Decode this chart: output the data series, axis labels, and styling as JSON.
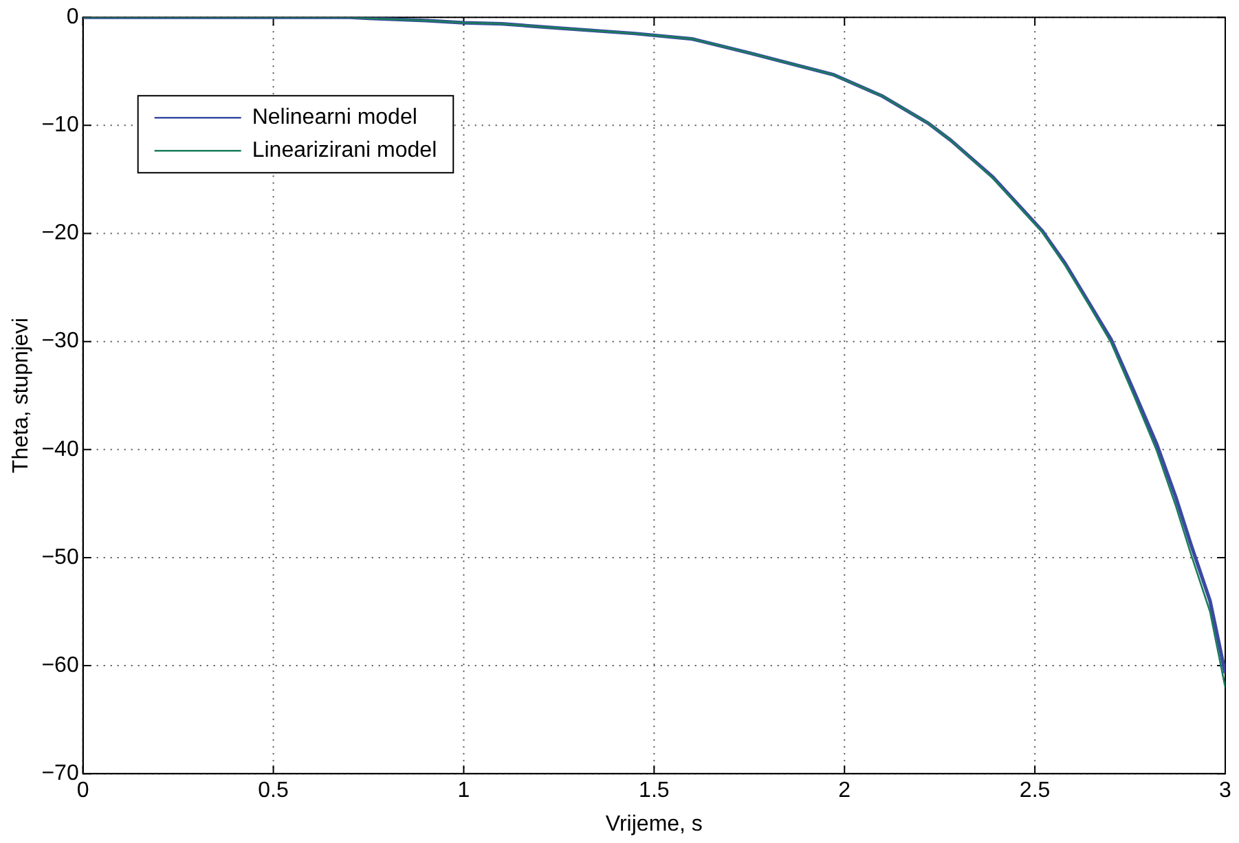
{
  "chart_data": {
    "type": "line",
    "xlabel": "Vrijeme, s",
    "ylabel": "Theta, stupnjevi",
    "x": [
      0,
      0.5,
      0.7,
      0.75,
      0.9,
      1.0,
      1.1,
      1.25,
      1.45,
      1.6,
      1.75,
      1.97,
      2.1,
      2.22,
      2.28,
      2.39,
      2.52,
      2.58,
      2.64,
      2.7,
      2.76,
      2.82,
      2.87,
      2.91,
      2.96,
      3.0
    ],
    "series": [
      {
        "name": "Nelinearni model",
        "color": "#3a4aa0",
        "values": [
          0,
          0,
          0,
          -0.1,
          -0.3,
          -0.5,
          -0.6,
          -1,
          -1.5,
          -2,
          -3.3,
          -5.3,
          -7.3,
          -9.8,
          -11.4,
          -14.8,
          -19.8,
          -22.8,
          -26.3,
          -29.8,
          -34.6,
          -39.5,
          -44.4,
          -48.8,
          -54,
          -60.7
        ]
      },
      {
        "name": "Linearizirani model",
        "color": "#1b7d5a",
        "values": [
          0,
          0,
          0,
          -0.1,
          -0.3,
          -0.5,
          -0.6,
          -1,
          -1.5,
          -2,
          -3.3,
          -5.3,
          -7.3,
          -9.8,
          -11.4,
          -14.9,
          -19.9,
          -23,
          -26.5,
          -30.1,
          -35,
          -40.1,
          -45.2,
          -49.7,
          -55,
          -62
        ]
      }
    ],
    "xlim": [
      0,
      3
    ],
    "xticks": [
      0,
      0.5,
      1,
      1.5,
      2,
      2.5,
      3
    ],
    "ylim": [
      -70,
      0
    ],
    "yticks": [
      -70,
      -60,
      -50,
      -40,
      -30,
      -20,
      -10,
      0
    ],
    "grid": true,
    "legend": "top left",
    "line_style": "solid",
    "marker": "none"
  }
}
